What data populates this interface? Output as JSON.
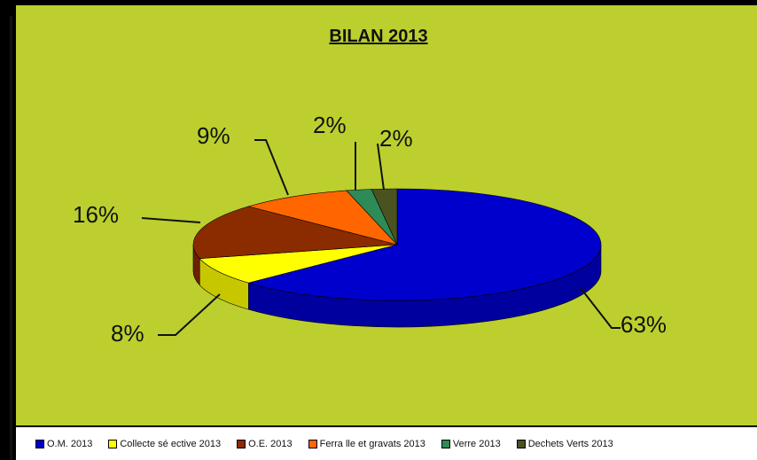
{
  "chart_data": {
    "type": "pie",
    "title": "BILAN 2013",
    "slices": [
      {
        "label": "O.M. 2013",
        "value": 63,
        "display": "63%",
        "color": "#0000cc"
      },
      {
        "label": "Collecte sé ective 2013",
        "value": 8,
        "display": "8%",
        "color": "#ffff00"
      },
      {
        "label": "O.E. 2013",
        "value": 16,
        "display": "16%",
        "color": "#8b2c00"
      },
      {
        "label": "Ferra lle et gravats 2013",
        "value": 9,
        "display": "9%",
        "color": "#ff6600"
      },
      {
        "label": "Verre 2013",
        "value": 2,
        "display": "2%",
        "color": "#2e8b57"
      },
      {
        "label": "Dechets Verts 2013",
        "value": 2,
        "display": "2%",
        "color": "#4a5320"
      }
    ],
    "legend_position": "bottom"
  }
}
